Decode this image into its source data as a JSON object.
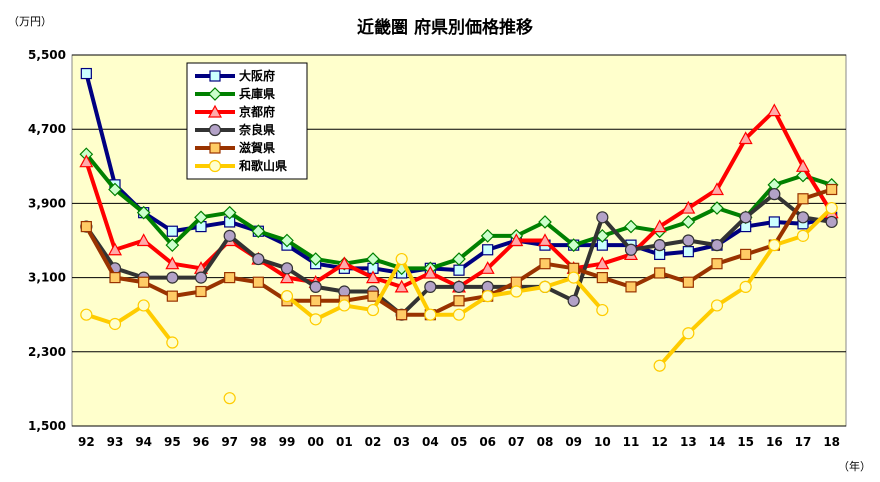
{
  "chart_data": {
    "type": "line",
    "title": "近畿圏 府県別価格推移",
    "y_unit": "（万円）",
    "x_unit": "（年）",
    "ylim": [
      1500,
      5500
    ],
    "yticks": [
      "1,500",
      "2,300",
      "3,100",
      "3,900",
      "4,700",
      "5,500"
    ],
    "ytick_values": [
      1500,
      2300,
      3100,
      3900,
      4700,
      5500
    ],
    "categories": [
      "92",
      "93",
      "94",
      "95",
      "96",
      "97",
      "98",
      "99",
      "00",
      "01",
      "02",
      "03",
      "04",
      "05",
      "06",
      "07",
      "08",
      "09",
      "10",
      "11",
      "12",
      "13",
      "14",
      "15",
      "16",
      "17",
      "18"
    ],
    "grid": true,
    "legend_placement": "top-left",
    "plot_bg": "#ffffcc",
    "series": [
      {
        "name": "大阪府",
        "color": "#000080",
        "marker": "square",
        "marker_fill": "#ccffff",
        "values": [
          5300,
          4100,
          3800,
          3600,
          3650,
          3700,
          3600,
          3450,
          3250,
          3200,
          3200,
          3150,
          3200,
          3180,
          3400,
          3500,
          3450,
          3450,
          3450,
          3450,
          3350,
          3380,
          3450,
          3650,
          3700,
          3680,
          3750
        ]
      },
      {
        "name": "兵庫県",
        "color": "#008000",
        "marker": "diamond",
        "marker_fill": "#ccffcc",
        "values": [
          4430,
          4050,
          3800,
          3450,
          3750,
          3800,
          3600,
          3500,
          3300,
          3250,
          3300,
          3200,
          3200,
          3300,
          3550,
          3550,
          3700,
          3450,
          3550,
          3650,
          3600,
          3700,
          3850,
          3750,
          4100,
          4200,
          4100
        ]
      },
      {
        "name": "京都府",
        "color": "#ff0000",
        "marker": "triangle",
        "marker_fill": "#ffaaaa",
        "values": [
          4350,
          3400,
          3500,
          3250,
          3200,
          3500,
          3300,
          3100,
          3050,
          3250,
          3100,
          3000,
          3150,
          3000,
          3200,
          3500,
          3500,
          3200,
          3250,
          3350,
          3650,
          3850,
          4050,
          4600,
          4900,
          4300,
          3800
        ]
      },
      {
        "name": "奈良県",
        "color": "#333333",
        "marker": "circle",
        "marker_fill": "#b3a2c7",
        "values": [
          3650,
          3200,
          3100,
          3100,
          3100,
          3550,
          3300,
          3200,
          3000,
          2950,
          2950,
          2700,
          3000,
          3000,
          3000,
          3000,
          3000,
          2850,
          3750,
          3400,
          3450,
          3500,
          3450,
          3750,
          4000,
          3750,
          3700
        ]
      },
      {
        "name": "滋賀県",
        "color": "#993300",
        "marker": "square",
        "marker_fill": "#ffcc66",
        "values": [
          3650,
          3100,
          3050,
          2900,
          2950,
          3100,
          3050,
          2850,
          2850,
          2850,
          2900,
          2700,
          2700,
          2850,
          2900,
          3050,
          3250,
          3200,
          3100,
          3000,
          3150,
          3050,
          3250,
          3350,
          3450,
          3950,
          4050
        ]
      },
      {
        "name": "和歌山県",
        "color": "#ffcc00",
        "marker": "circle",
        "marker_fill": "#ffffcc",
        "values": [
          2700,
          2600,
          2800,
          2400,
          null,
          1800,
          null,
          2900,
          2650,
          2800,
          2750,
          3300,
          2700,
          2700,
          2900,
          2950,
          3000,
          3100,
          2750,
          null,
          2150,
          2500,
          2800,
          3000,
          3450,
          3550,
          3850
        ]
      }
    ]
  }
}
